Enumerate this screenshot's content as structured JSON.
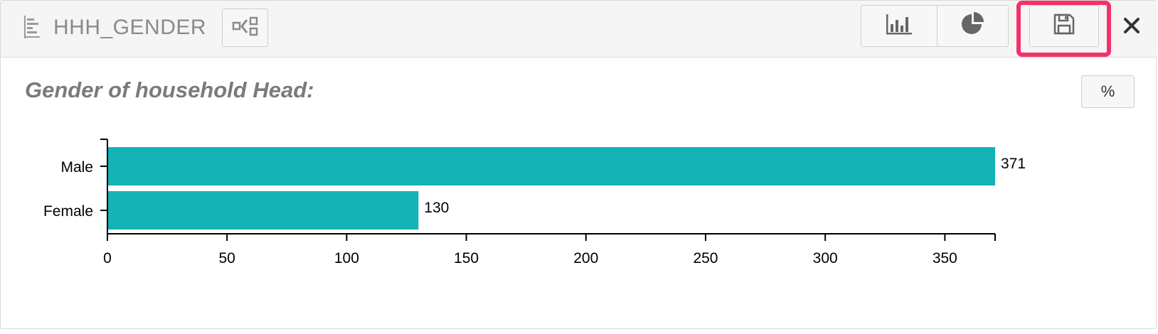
{
  "header": {
    "title": "HHH_GENDER",
    "title_icon": "bar-list-icon",
    "collapse_icon": "collapse-tree-icon",
    "bar_chart_icon": "bar-chart-icon",
    "pie_chart_icon": "pie-chart-icon",
    "save_icon": "floppy-disk-icon",
    "close_label": "✕",
    "highlight_color": "#f4306a"
  },
  "chart_title": "Gender of household Head:",
  "percent_label": "%",
  "chart_data": {
    "type": "bar",
    "orientation": "horizontal",
    "categories": [
      "Male",
      "Female"
    ],
    "values": [
      371,
      130
    ],
    "xlim": [
      0,
      371
    ],
    "xticks": [
      0,
      50,
      100,
      150,
      200,
      250,
      300,
      350
    ],
    "bar_color": "#13b3b6",
    "grid": false
  }
}
